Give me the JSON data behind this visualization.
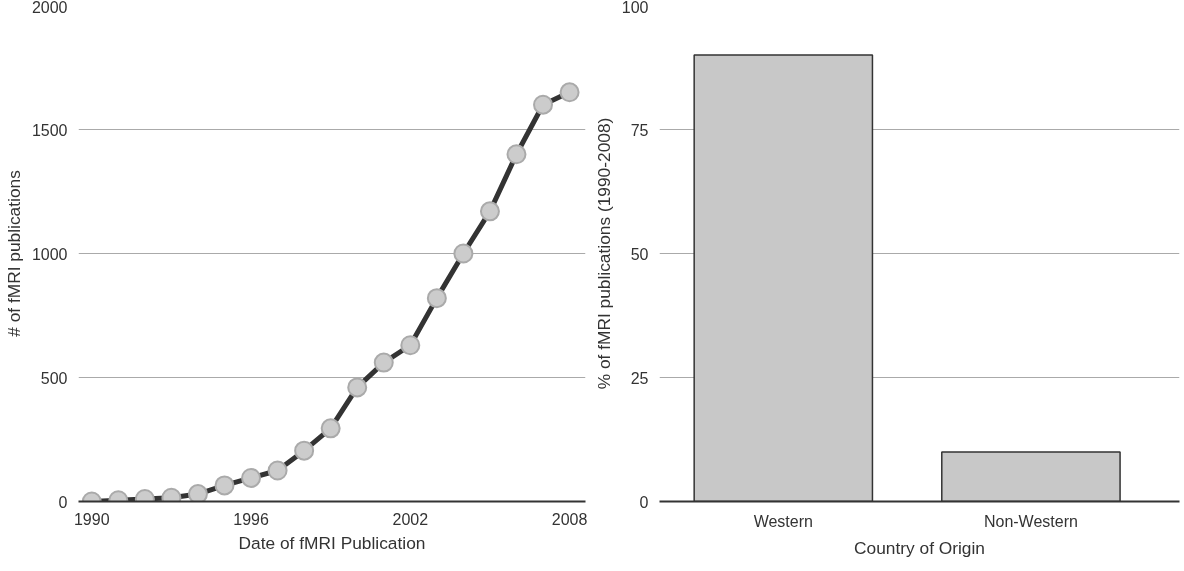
{
  "chart_data": [
    {
      "type": "line",
      "xlabel": "Date of fMRI Publication",
      "ylabel": "# of fMRI publications",
      "x": [
        1990,
        1991,
        1992,
        1993,
        1994,
        1995,
        1996,
        1997,
        1998,
        1999,
        2000,
        2001,
        2002,
        2003,
        2004,
        2005,
        2006,
        2007,
        2008
      ],
      "series": [
        {
          "color": "#333333",
          "values": [
            0,
            5,
            10,
            15,
            30,
            65,
            95,
            125,
            205,
            295,
            460,
            560,
            630,
            820,
            1000,
            1170,
            1400,
            1600,
            1650
          ]
        }
      ],
      "marker": "circle",
      "xlim": [
        1989.5,
        2008.6
      ],
      "xticks": [
        1990,
        1996,
        2002,
        2008
      ],
      "ylim": [
        0,
        2000
      ],
      "yticks": [
        0,
        500,
        1000,
        1500,
        2000
      ],
      "grid": "y"
    },
    {
      "type": "bar",
      "xlabel": "Country of Origin",
      "ylabel": "% of fMRI publications (1990-2008)",
      "categories": [
        "Western",
        "Non-Western"
      ],
      "series": [
        {
          "color": "#c8c8c8",
          "values": [
            90,
            10
          ]
        }
      ],
      "ylim": [
        0,
        100
      ],
      "yticks": [
        0,
        25,
        50,
        75,
        100
      ],
      "grid": "y"
    }
  ]
}
